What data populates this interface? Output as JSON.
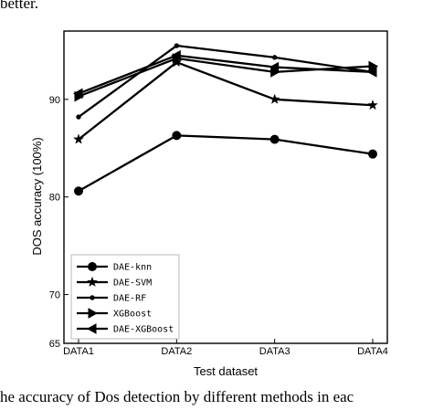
{
  "page": {
    "top_text": "better.",
    "caption": "he accuracy of Dos detection by different methods in eac"
  },
  "chart_data": {
    "type": "line",
    "title": "",
    "xlabel": "Test dataset",
    "ylabel": "DOS accuracy (100%)",
    "categories": [
      "DATA1",
      "DATA2",
      "DATA3",
      "DATA4"
    ],
    "ylim": [
      65,
      97
    ],
    "yticks": [
      65,
      70,
      80,
      90
    ],
    "grid": false,
    "legend_position": "bottom-left",
    "series": [
      {
        "name": "DAE-knn",
        "marker": "circle",
        "values": [
          80.6,
          86.3,
          85.9,
          84.4
        ]
      },
      {
        "name": "DAE-SVM",
        "marker": "star",
        "values": [
          85.9,
          93.8,
          90.0,
          89.4
        ]
      },
      {
        "name": "DAE-RF",
        "marker": "dot",
        "values": [
          88.2,
          95.5,
          94.3,
          92.8
        ]
      },
      {
        "name": "XGBoost",
        "marker": "triangle-right",
        "values": [
          90.3,
          94.2,
          92.8,
          93.4
        ]
      },
      {
        "name": "DAE-XGBoost",
        "marker": "triangle-left",
        "values": [
          90.6,
          94.5,
          93.3,
          92.8
        ]
      }
    ]
  }
}
